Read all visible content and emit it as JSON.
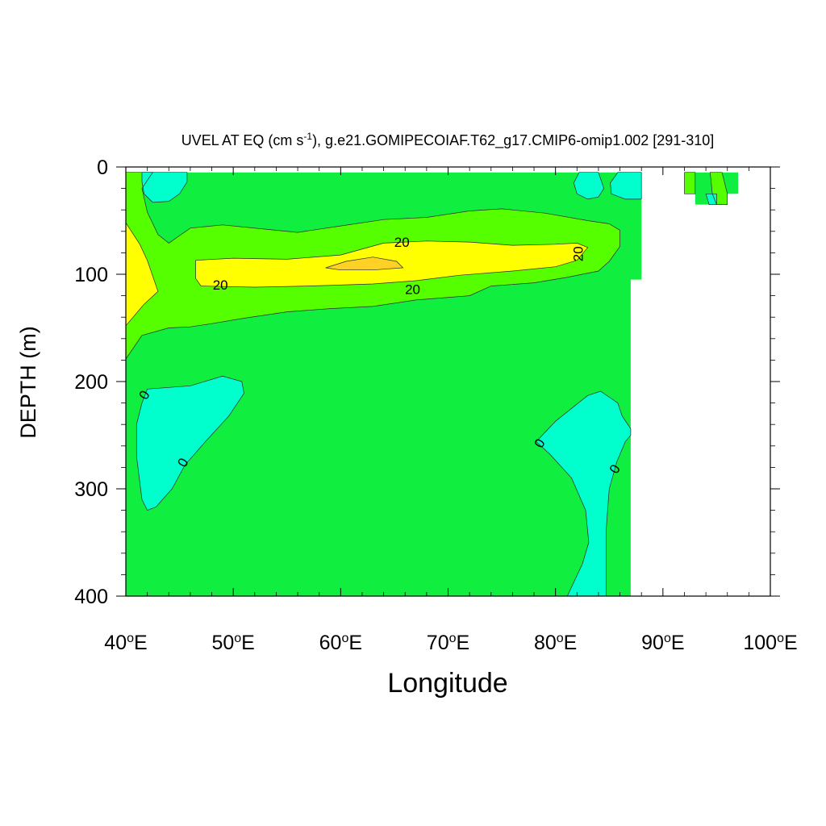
{
  "chart_data": {
    "type": "heatmap",
    "title": "UVEL AT EQ (cm s",
    "title_sup": "-1",
    "title_rest": "), g.e21.GOMIPECOIAF.T62_g17.CMIP6-omip1.002 [291-310]",
    "xlabel": "Longitude",
    "ylabel": "DEPTH (m)",
    "xlim": [
      40,
      100
    ],
    "ylim": [
      0,
      400
    ],
    "y_inverted": true,
    "x_ticks": [
      {
        "value": 40,
        "num": "40",
        "deg": "o",
        "dir": "E"
      },
      {
        "value": 50,
        "num": "50",
        "deg": "o",
        "dir": "E"
      },
      {
        "value": 60,
        "num": "60",
        "deg": "o",
        "dir": "E"
      },
      {
        "value": 70,
        "num": "70",
        "deg": "o",
        "dir": "E"
      },
      {
        "value": 80,
        "num": "80",
        "deg": "o",
        "dir": "E"
      },
      {
        "value": 90,
        "num": "90",
        "deg": "o",
        "dir": "E"
      },
      {
        "value": 100,
        "num": "100",
        "deg": "o",
        "dir": "E"
      }
    ],
    "y_ticks": [
      {
        "value": 0,
        "label": "0"
      },
      {
        "value": 100,
        "label": "100"
      },
      {
        "value": 200,
        "label": "200"
      },
      {
        "value": 300,
        "label": "300"
      },
      {
        "value": 400,
        "label": "400"
      }
    ],
    "fill_colors": {
      "below_0": "#00ffcc",
      "0_to_10": "#10ee40",
      "10_to_20": "#55ff00",
      "20_to_30": "#ffff00",
      "30_to_40": "#ffd125",
      "land_missing": "#ffffff"
    },
    "contour_labels": [
      {
        "text": "20",
        "lon": 65.7,
        "depth": 71,
        "angle": 0
      },
      {
        "text": "20",
        "lon": 82.2,
        "depth": 81,
        "angle": -90
      },
      {
        "text": "20",
        "lon": 48.8,
        "depth": 111,
        "angle": 0
      },
      {
        "text": "20",
        "lon": 66.7,
        "depth": 115,
        "angle": 0
      },
      {
        "text": "0",
        "lon": 41.8,
        "depth": 213,
        "angle": -60
      },
      {
        "text": "0",
        "lon": 45.4,
        "depth": 276,
        "angle": -60
      },
      {
        "text": "0",
        "lon": 78.6,
        "depth": 258,
        "angle": -60
      },
      {
        "text": "0",
        "lon": 85.6,
        "depth": 282,
        "angle": -60
      }
    ],
    "regions": [
      {
        "level": "0_to_10",
        "points": [
          [
            40,
            5
          ],
          [
            88,
            5
          ],
          [
            88,
            105
          ],
          [
            87,
            105
          ],
          [
            87,
            400
          ],
          [
            40,
            400
          ]
        ]
      },
      {
        "level": "0_to_10",
        "points": [
          [
            92,
            5
          ],
          [
            97,
            5
          ],
          [
            97,
            25
          ],
          [
            96,
            25
          ],
          [
            96,
            35
          ],
          [
            93,
            35
          ],
          [
            93,
            25
          ],
          [
            92,
            25
          ]
        ]
      },
      {
        "level": "10_to_20",
        "points": [
          [
            40,
            5
          ],
          [
            42.5,
            5
          ],
          [
            41.5,
            20
          ],
          [
            42,
            42
          ],
          [
            43,
            63
          ],
          [
            44,
            71
          ],
          [
            45,
            64
          ],
          [
            46,
            57
          ],
          [
            49,
            54
          ],
          [
            53,
            58
          ],
          [
            56,
            61
          ],
          [
            60,
            55
          ],
          [
            64,
            49
          ],
          [
            68,
            47
          ],
          [
            72,
            41
          ],
          [
            75,
            39
          ],
          [
            79,
            43
          ],
          [
            83,
            50
          ],
          [
            85,
            53
          ],
          [
            86,
            59
          ],
          [
            86,
            74
          ],
          [
            85,
            88
          ],
          [
            84,
            97
          ],
          [
            81,
            103
          ],
          [
            78,
            108
          ],
          [
            74,
            111
          ],
          [
            72,
            120
          ],
          [
            67,
            124
          ],
          [
            63,
            130
          ],
          [
            59,
            132
          ],
          [
            55,
            135
          ],
          [
            51,
            141
          ],
          [
            48,
            146
          ],
          [
            46,
            149
          ],
          [
            44,
            150
          ],
          [
            41.5,
            157
          ],
          [
            40,
            179
          ]
        ]
      },
      {
        "level": "10_to_20",
        "points": [
          [
            92,
            5
          ],
          [
            93,
            5
          ],
          [
            93,
            25
          ],
          [
            92,
            25
          ]
        ]
      },
      {
        "level": "10_to_20",
        "points": [
          [
            94.4,
            5
          ],
          [
            95.5,
            5
          ],
          [
            96,
            25
          ],
          [
            96,
            35
          ],
          [
            95,
            35
          ],
          [
            94.6,
            25
          ]
        ]
      },
      {
        "level": "20_to_30",
        "points": [
          [
            40,
            52
          ],
          [
            41.3,
            72
          ],
          [
            42,
            87
          ],
          [
            43,
            116
          ],
          [
            41.7,
            128
          ],
          [
            40,
            148
          ]
        ]
      },
      {
        "level": "20_to_30",
        "points": [
          [
            46.5,
            87
          ],
          [
            50,
            85
          ],
          [
            55,
            86
          ],
          [
            60,
            82
          ],
          [
            64,
            71
          ],
          [
            68,
            69
          ],
          [
            72,
            70
          ],
          [
            76,
            73
          ],
          [
            80,
            72
          ],
          [
            82,
            71
          ],
          [
            83,
            75
          ],
          [
            82,
            87
          ],
          [
            80,
            93
          ],
          [
            76,
            97
          ],
          [
            71,
            101
          ],
          [
            67,
            106
          ],
          [
            63,
            109
          ],
          [
            57,
            111
          ],
          [
            52,
            112
          ],
          [
            47,
            111
          ],
          [
            46.5,
            104
          ]
        ]
      },
      {
        "level": "30_to_40",
        "points": [
          [
            58.6,
            94
          ],
          [
            60.5,
            88
          ],
          [
            63,
            84
          ],
          [
            65.2,
            88
          ],
          [
            65.8,
            94
          ],
          [
            63,
            96
          ],
          [
            60,
            96
          ]
        ]
      },
      {
        "level": "below_0",
        "points": [
          [
            41.5,
            5
          ],
          [
            45.7,
            5
          ],
          [
            45.7,
            14
          ],
          [
            45,
            25
          ],
          [
            44,
            32
          ],
          [
            42.5,
            33
          ],
          [
            41.7,
            25
          ],
          [
            41.5,
            14
          ]
        ]
      },
      {
        "level": "below_0",
        "points": [
          [
            82.2,
            5
          ],
          [
            84,
            5
          ],
          [
            84.5,
            20
          ],
          [
            84,
            28
          ],
          [
            83,
            30
          ],
          [
            82,
            25
          ],
          [
            81.7,
            15
          ]
        ]
      },
      {
        "level": "below_0",
        "points": [
          [
            85.8,
            5
          ],
          [
            88,
            5
          ],
          [
            88,
            30
          ],
          [
            86.5,
            30
          ],
          [
            85.2,
            25
          ],
          [
            85.1,
            15
          ]
        ]
      },
      {
        "level": "below_0",
        "points": [
          [
            94,
            25
          ],
          [
            94.3,
            35
          ],
          [
            95,
            35
          ],
          [
            95,
            25
          ]
        ]
      },
      {
        "level": "below_0",
        "points": [
          [
            42,
            207
          ],
          [
            46,
            204
          ],
          [
            49,
            195
          ],
          [
            50.8,
            200
          ],
          [
            51,
            211
          ],
          [
            49.6,
            232
          ],
          [
            47.5,
            255
          ],
          [
            45.5,
            278
          ],
          [
            44.3,
            300
          ],
          [
            42.8,
            317
          ],
          [
            42,
            320
          ],
          [
            41.5,
            310
          ],
          [
            41,
            270
          ],
          [
            41,
            240
          ],
          [
            41.5,
            220
          ]
        ]
      },
      {
        "level": "below_0",
        "points": [
          [
            80,
            237
          ],
          [
            83,
            213
          ],
          [
            84.2,
            209
          ],
          [
            85.8,
            220
          ],
          [
            86.2,
            232
          ],
          [
            87,
            244
          ],
          [
            87,
            250
          ],
          [
            86.5,
            256
          ],
          [
            85.7,
            275
          ],
          [
            85,
            300
          ],
          [
            84.7,
            340
          ],
          [
            84.7,
            400
          ],
          [
            81.1,
            400
          ],
          [
            82.5,
            370
          ],
          [
            83.1,
            350
          ],
          [
            82.8,
            320
          ],
          [
            81.5,
            290
          ],
          [
            79.5,
            268
          ],
          [
            78.2,
            256
          ]
        ]
      }
    ]
  }
}
